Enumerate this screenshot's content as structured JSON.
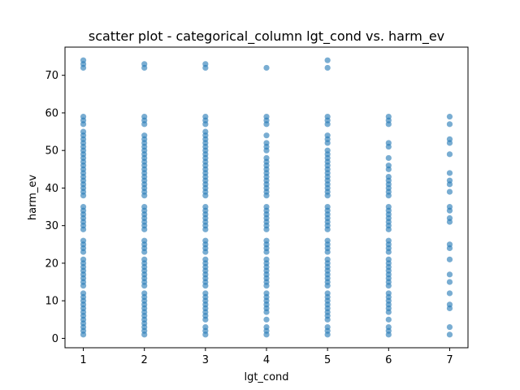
{
  "chart_data": {
    "type": "scatter",
    "title": "scatter plot - categorical_column lgt_cond vs. harm_ev",
    "xlabel": "lgt_cond",
    "ylabel": "harm_ev",
    "xlim": [
      0.7,
      7.3
    ],
    "ylim": [
      -2.5,
      77.5
    ],
    "xticks": [
      1,
      2,
      3,
      4,
      5,
      6,
      7
    ],
    "yticks": [
      0,
      10,
      20,
      30,
      40,
      50,
      60,
      70
    ],
    "grid": false,
    "point_color": "#1f77b4",
    "series": [
      {
        "x": 1,
        "y": [
          1,
          2,
          3,
          4,
          5,
          6,
          7,
          8,
          9,
          10,
          11,
          12,
          14,
          15,
          16,
          17,
          18,
          19,
          20,
          21,
          23,
          24,
          25,
          26,
          29,
          30,
          31,
          32,
          33,
          34,
          35,
          38,
          39,
          40,
          41,
          42,
          43,
          44,
          45,
          46,
          47,
          48,
          49,
          50,
          51,
          52,
          53,
          54,
          55,
          57,
          58,
          59,
          72,
          73,
          74
        ]
      },
      {
        "x": 2,
        "y": [
          1,
          2,
          3,
          4,
          5,
          6,
          7,
          8,
          9,
          10,
          11,
          12,
          14,
          15,
          16,
          17,
          18,
          19,
          20,
          21,
          23,
          24,
          25,
          26,
          29,
          30,
          31,
          32,
          33,
          34,
          35,
          38,
          39,
          40,
          41,
          42,
          43,
          44,
          45,
          46,
          47,
          48,
          49,
          50,
          51,
          52,
          53,
          54,
          57,
          58,
          59,
          72,
          73
        ]
      },
      {
        "x": 3,
        "y": [
          1,
          2,
          3,
          5,
          6,
          7,
          8,
          9,
          10,
          11,
          12,
          14,
          15,
          16,
          17,
          18,
          19,
          20,
          21,
          23,
          24,
          25,
          26,
          29,
          30,
          31,
          32,
          33,
          34,
          35,
          38,
          39,
          40,
          41,
          42,
          43,
          44,
          45,
          46,
          47,
          48,
          49,
          50,
          51,
          52,
          53,
          54,
          55,
          57,
          58,
          59,
          72,
          73
        ]
      },
      {
        "x": 4,
        "y": [
          1,
          2,
          3,
          5,
          7,
          8,
          9,
          10,
          11,
          12,
          14,
          15,
          16,
          17,
          18,
          19,
          20,
          21,
          23,
          24,
          25,
          26,
          29,
          30,
          31,
          32,
          33,
          34,
          35,
          38,
          39,
          40,
          41,
          42,
          43,
          44,
          45,
          46,
          47,
          48,
          50,
          51,
          52,
          54,
          57,
          58,
          59,
          72
        ]
      },
      {
        "x": 5,
        "y": [
          1,
          2,
          3,
          5,
          6,
          7,
          8,
          9,
          10,
          11,
          12,
          14,
          15,
          16,
          17,
          18,
          19,
          20,
          21,
          23,
          24,
          25,
          26,
          29,
          30,
          31,
          32,
          33,
          34,
          35,
          38,
          39,
          40,
          41,
          42,
          43,
          44,
          45,
          46,
          47,
          48,
          49,
          50,
          52,
          53,
          54,
          57,
          58,
          59,
          72,
          74
        ]
      },
      {
        "x": 6,
        "y": [
          1,
          2,
          3,
          5,
          7,
          8,
          9,
          10,
          11,
          12,
          14,
          15,
          16,
          17,
          18,
          19,
          20,
          21,
          23,
          24,
          25,
          26,
          29,
          30,
          31,
          32,
          33,
          34,
          35,
          38,
          39,
          40,
          41,
          42,
          43,
          45,
          46,
          48,
          51,
          52,
          57,
          58,
          59
        ]
      },
      {
        "x": 7,
        "y": [
          1,
          3,
          8,
          9,
          12,
          15,
          17,
          21,
          24,
          25,
          31,
          32,
          34,
          35,
          39,
          41,
          42,
          44,
          49,
          52,
          53,
          57,
          59
        ]
      }
    ]
  }
}
